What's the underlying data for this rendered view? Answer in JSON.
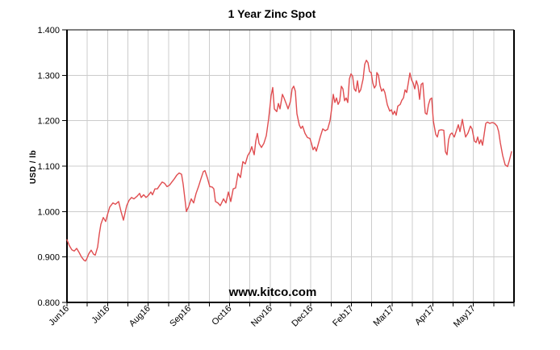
{
  "chart": {
    "title": "1 Year Zinc Spot",
    "ylabel": "USD / lb",
    "watermark": "www.kitco.com",
    "colors": {
      "line": "#e04d50",
      "grid": "#cccccc",
      "axis": "#000000",
      "text": "#000000",
      "watermark": "#0000e0",
      "background": "#ffffff"
    }
  },
  "chart_data": {
    "type": "line",
    "title": "1 Year Zinc Spot",
    "xlabel": "",
    "ylabel": "USD / lb",
    "grid": true,
    "legend": "none",
    "ylim": [
      0.8,
      1.4
    ],
    "y_tick_step": 0.1,
    "y_tick_labels": [
      "0.800",
      "0.900",
      "1.000",
      "1.100",
      "1.200",
      "1.300",
      "1.400"
    ],
    "x_tick_labels": [
      "Jun16",
      "Jul16",
      "Aug16",
      "Sep16",
      "Oct16",
      "Nov16",
      "Dec16",
      "Feb17",
      "Mar17",
      "Apr17",
      "May17"
    ],
    "x_axis": {
      "intervals": 22,
      "label_every_n_gridlines": 2,
      "axis_width_units": 554
    },
    "series": [
      {
        "name": "Zinc Spot (USD/lb)",
        "color": "#e04d50",
        "points": [
          [
            0,
            0.938
          ],
          [
            3,
            0.925
          ],
          [
            6,
            0.916
          ],
          [
            9,
            0.913
          ],
          [
            12,
            0.919
          ],
          [
            15,
            0.91
          ],
          [
            18,
            0.9
          ],
          [
            21,
            0.893
          ],
          [
            23,
            0.891
          ],
          [
            25,
            0.898
          ],
          [
            27,
            0.907
          ],
          [
            30,
            0.915
          ],
          [
            33,
            0.906
          ],
          [
            35,
            0.904
          ],
          [
            38,
            0.922
          ],
          [
            40,
            0.95
          ],
          [
            42,
            0.972
          ],
          [
            45,
            0.987
          ],
          [
            48,
            0.978
          ],
          [
            50,
            0.992
          ],
          [
            53,
            1.01
          ],
          [
            57,
            1.019
          ],
          [
            60,
            1.016
          ],
          [
            64,
            1.022
          ],
          [
            67,
            1.0
          ],
          [
            70,
            0.981
          ],
          [
            74,
            1.013
          ],
          [
            77,
            1.025
          ],
          [
            80,
            1.031
          ],
          [
            83,
            1.028
          ],
          [
            87,
            1.034
          ],
          [
            90,
            1.04
          ],
          [
            92,
            1.031
          ],
          [
            95,
            1.037
          ],
          [
            98,
            1.031
          ],
          [
            101,
            1.036
          ],
          [
            104,
            1.043
          ],
          [
            106,
            1.037
          ],
          [
            109,
            1.05
          ],
          [
            112,
            1.05
          ],
          [
            115,
            1.058
          ],
          [
            118,
            1.065
          ],
          [
            121,
            1.062
          ],
          [
            124,
            1.055
          ],
          [
            127,
            1.058
          ],
          [
            130,
            1.065
          ],
          [
            133,
            1.072
          ],
          [
            136,
            1.08
          ],
          [
            139,
            1.085
          ],
          [
            142,
            1.082
          ],
          [
            144,
            1.06
          ],
          [
            146,
            1.03
          ],
          [
            148,
            1.0
          ],
          [
            151,
            1.012
          ],
          [
            154,
            1.028
          ],
          [
            157,
            1.019
          ],
          [
            160,
            1.04
          ],
          [
            163,
            1.055
          ],
          [
            166,
            1.072
          ],
          [
            169,
            1.088
          ],
          [
            171,
            1.09
          ],
          [
            174,
            1.074
          ],
          [
            177,
            1.055
          ],
          [
            180,
            1.054
          ],
          [
            182,
            1.05
          ],
          [
            184,
            1.022
          ],
          [
            187,
            1.019
          ],
          [
            190,
            1.013
          ],
          [
            194,
            1.028
          ],
          [
            197,
            1.019
          ],
          [
            200,
            1.043
          ],
          [
            203,
            1.022
          ],
          [
            206,
            1.05
          ],
          [
            209,
            1.052
          ],
          [
            212,
            1.084
          ],
          [
            215,
            1.075
          ],
          [
            218,
            1.11
          ],
          [
            221,
            1.105
          ],
          [
            224,
            1.123
          ],
          [
            227,
            1.132
          ],
          [
            229,
            1.143
          ],
          [
            232,
            1.125
          ],
          [
            234,
            1.155
          ],
          [
            236,
            1.172
          ],
          [
            238,
            1.15
          ],
          [
            241,
            1.141
          ],
          [
            244,
            1.15
          ],
          [
            247,
            1.167
          ],
          [
            250,
            1.205
          ],
          [
            253,
            1.255
          ],
          [
            255,
            1.273
          ],
          [
            257,
            1.226
          ],
          [
            260,
            1.22
          ],
          [
            262,
            1.238
          ],
          [
            264,
            1.226
          ],
          [
            267,
            1.258
          ],
          [
            269,
            1.25
          ],
          [
            272,
            1.236
          ],
          [
            274,
            1.226
          ],
          [
            277,
            1.243
          ],
          [
            279,
            1.27
          ],
          [
            281,
            1.276
          ],
          [
            283,
            1.265
          ],
          [
            285,
            1.215
          ],
          [
            288,
            1.19
          ],
          [
            290,
            1.183
          ],
          [
            292,
            1.188
          ],
          [
            295,
            1.172
          ],
          [
            298,
            1.163
          ],
          [
            301,
            1.161
          ],
          [
            303,
            1.15
          ],
          [
            305,
            1.136
          ],
          [
            307,
            1.142
          ],
          [
            309,
            1.133
          ],
          [
            312,
            1.152
          ],
          [
            314,
            1.165
          ],
          [
            317,
            1.182
          ],
          [
            320,
            1.178
          ],
          [
            323,
            1.181
          ],
          [
            326,
            1.2
          ],
          [
            328,
            1.226
          ],
          [
            330,
            1.258
          ],
          [
            332,
            1.24
          ],
          [
            334,
            1.25
          ],
          [
            336,
            1.236
          ],
          [
            338,
            1.243
          ],
          [
            340,
            1.276
          ],
          [
            342,
            1.27
          ],
          [
            344,
            1.244
          ],
          [
            346,
            1.25
          ],
          [
            348,
            1.24
          ],
          [
            350,
            1.292
          ],
          [
            352,
            1.303
          ],
          [
            354,
            1.298
          ],
          [
            356,
            1.27
          ],
          [
            358,
            1.265
          ],
          [
            360,
            1.288
          ],
          [
            362,
            1.262
          ],
          [
            364,
            1.268
          ],
          [
            367,
            1.292
          ],
          [
            369,
            1.324
          ],
          [
            371,
            1.333
          ],
          [
            373,
            1.328
          ],
          [
            375,
            1.308
          ],
          [
            377,
            1.306
          ],
          [
            379,
            1.283
          ],
          [
            381,
            1.272
          ],
          [
            383,
            1.278
          ],
          [
            384,
            1.306
          ],
          [
            386,
            1.3
          ],
          [
            388,
            1.277
          ],
          [
            390,
            1.265
          ],
          [
            392,
            1.27
          ],
          [
            394,
            1.262
          ],
          [
            397,
            1.235
          ],
          [
            400,
            1.221
          ],
          [
            402,
            1.224
          ],
          [
            404,
            1.214
          ],
          [
            406,
            1.221
          ],
          [
            408,
            1.212
          ],
          [
            410,
            1.232
          ],
          [
            413,
            1.236
          ],
          [
            415,
            1.245
          ],
          [
            417,
            1.25
          ],
          [
            419,
            1.268
          ],
          [
            421,
            1.262
          ],
          [
            423,
            1.283
          ],
          [
            425,
            1.305
          ],
          [
            427,
            1.29
          ],
          [
            429,
            1.283
          ],
          [
            431,
            1.27
          ],
          [
            433,
            1.288
          ],
          [
            435,
            1.277
          ],
          [
            437,
            1.247
          ],
          [
            439,
            1.28
          ],
          [
            441,
            1.283
          ],
          [
            444,
            1.217
          ],
          [
            446,
            1.214
          ],
          [
            448,
            1.235
          ],
          [
            450,
            1.247
          ],
          [
            452,
            1.25
          ],
          [
            454,
            1.2
          ],
          [
            457,
            1.17
          ],
          [
            459,
            1.164
          ],
          [
            461,
            1.179
          ],
          [
            464,
            1.18
          ],
          [
            467,
            1.179
          ],
          [
            469,
            1.132
          ],
          [
            471,
            1.125
          ],
          [
            473,
            1.159
          ],
          [
            475,
            1.17
          ],
          [
            477,
            1.173
          ],
          [
            480,
            1.164
          ],
          [
            483,
            1.18
          ],
          [
            485,
            1.191
          ],
          [
            487,
            1.176
          ],
          [
            490,
            1.203
          ],
          [
            492,
            1.182
          ],
          [
            494,
            1.164
          ],
          [
            497,
            1.173
          ],
          [
            500,
            1.188
          ],
          [
            502,
            1.182
          ],
          [
            505,
            1.155
          ],
          [
            507,
            1.152
          ],
          [
            509,
            1.164
          ],
          [
            511,
            1.149
          ],
          [
            513,
            1.158
          ],
          [
            515,
            1.146
          ],
          [
            517,
            1.17
          ],
          [
            519,
            1.194
          ],
          [
            521,
            1.197
          ],
          [
            524,
            1.194
          ],
          [
            527,
            1.196
          ],
          [
            530,
            1.194
          ],
          [
            533,
            1.188
          ],
          [
            535,
            1.176
          ],
          [
            537,
            1.152
          ],
          [
            540,
            1.123
          ],
          [
            543,
            1.103
          ],
          [
            546,
            1.099
          ],
          [
            548,
            1.111
          ],
          [
            551,
            1.132
          ]
        ]
      }
    ]
  }
}
